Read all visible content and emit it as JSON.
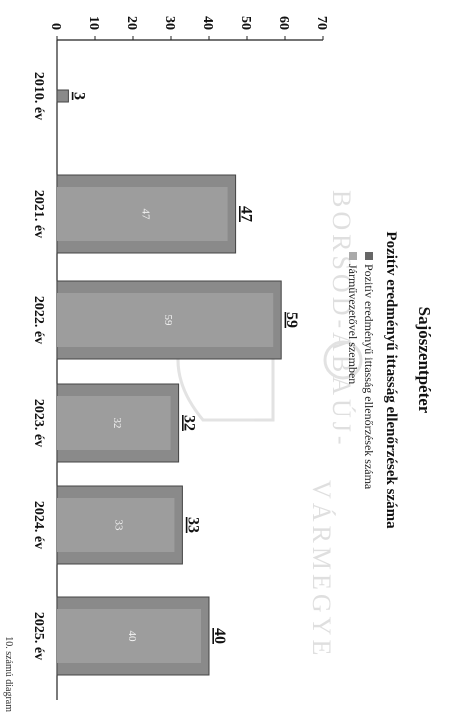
{
  "caption": "10. számú diagram",
  "chart_data": {
    "type": "bar",
    "title": "Sajószentpéter",
    "subtitle": "Pozitív eredményű ittasság ellenőrzések száma",
    "categories": [
      "2010. év",
      "2021. év",
      "2022. év",
      "2023. év",
      "2024. év",
      "2025. év"
    ],
    "series": [
      {
        "name": "Pozitív eredményű ittasság ellenőrzések száma",
        "values": [
          3,
          47,
          59,
          32,
          33,
          40
        ]
      },
      {
        "name": "Járművezetővel szemben",
        "values": [
          null,
          47,
          59,
          32,
          33,
          40
        ]
      }
    ],
    "ylim": [
      0,
      70
    ],
    "yticks": [
      0,
      10,
      20,
      30,
      40,
      50,
      60,
      70
    ],
    "orientation": "rotated-90-clockwise",
    "legend_position": "top",
    "grid": false,
    "colors": {
      "bar": "#8a8a8a",
      "bar_edge": "#444444",
      "inner": "#9d9d9d"
    }
  },
  "watermark": {
    "top_text": "BORSOD-ABAÚJ-",
    "bottom_text": "VÁRMEGYE"
  }
}
